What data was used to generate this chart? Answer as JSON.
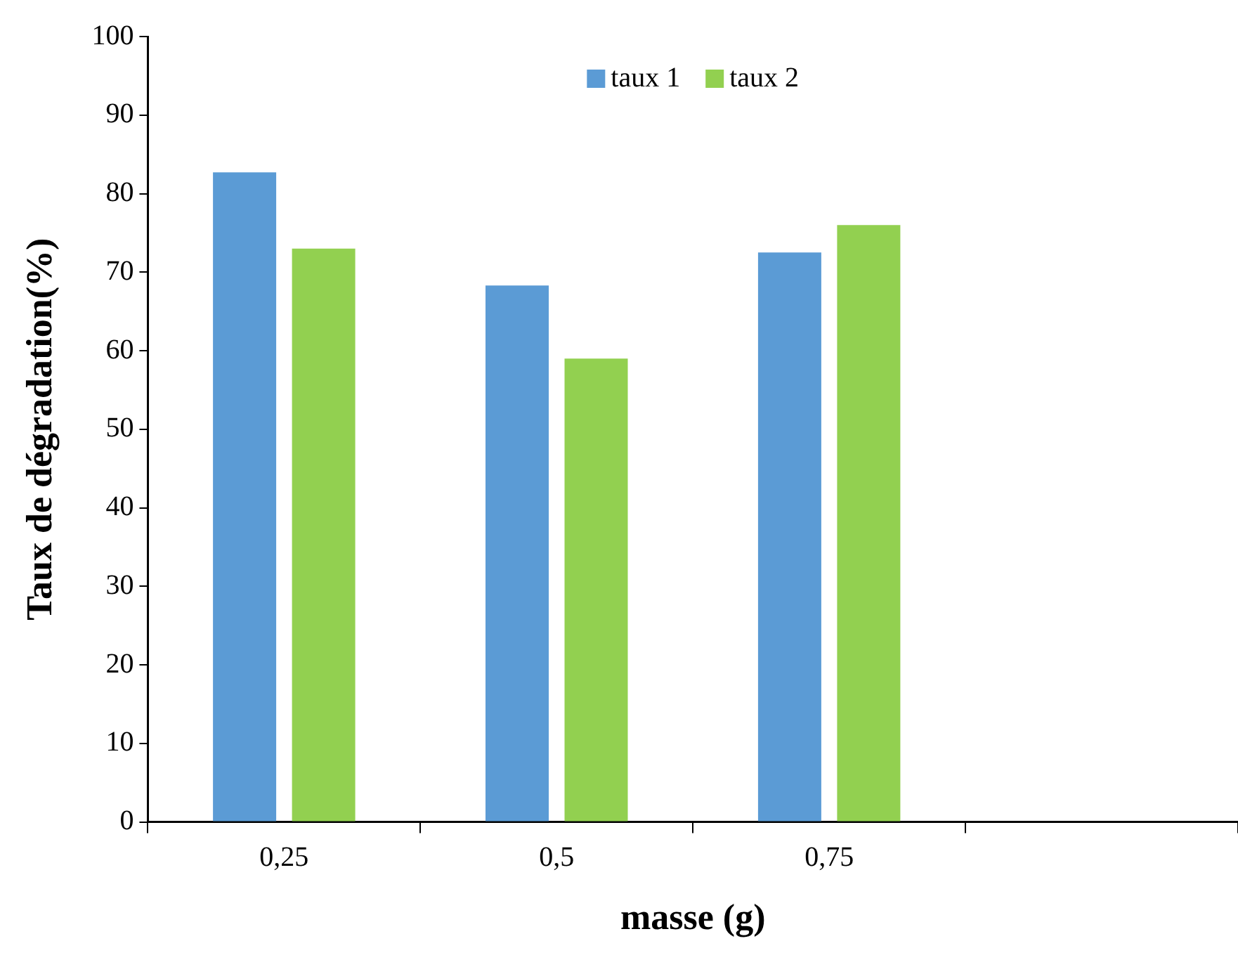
{
  "chart_data": {
    "type": "bar",
    "xlabel": "masse (g)",
    "ylabel": "Taux de dégradation(%)",
    "categories": [
      "0,25",
      "0,5",
      "0,75",
      null
    ],
    "series": [
      {
        "name": "taux 1",
        "color": "#5b9bd5",
        "values": [
          82.7,
          68.3,
          72.5,
          null
        ]
      },
      {
        "name": "taux 2",
        "color": "#92d050",
        "values": [
          73,
          59,
          76,
          null
        ]
      }
    ],
    "ylim": [
      0,
      100
    ],
    "yticks": [
      0,
      10,
      20,
      30,
      40,
      50,
      60,
      70,
      80,
      90,
      100
    ],
    "grid": false,
    "legend": "top"
  }
}
